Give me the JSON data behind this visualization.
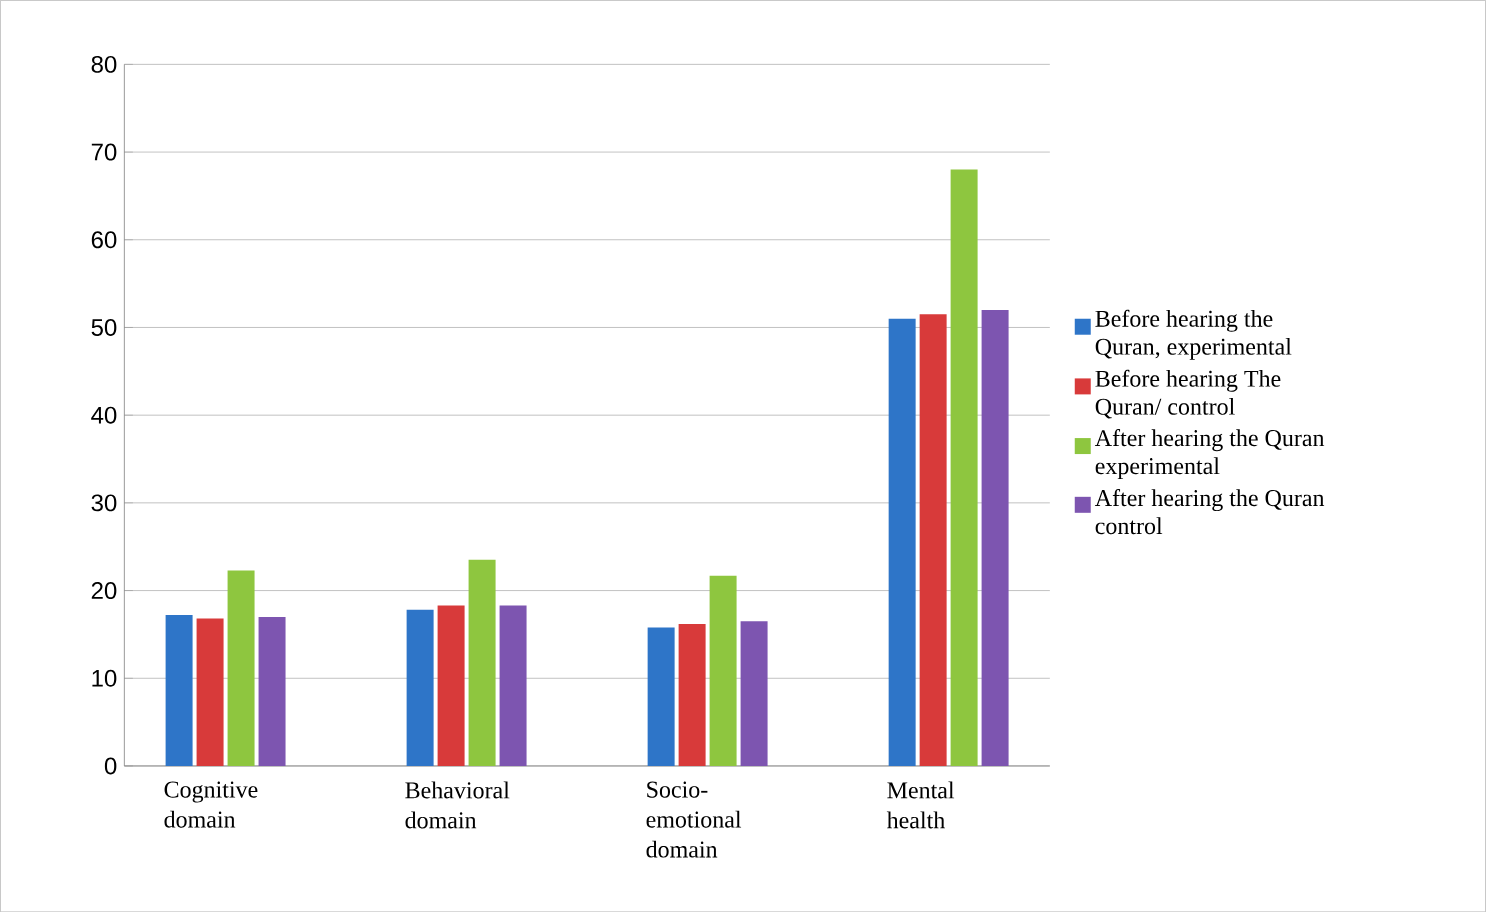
{
  "chart_data": {
    "type": "bar",
    "categories": [
      "Cognitive domain",
      "Behavioral domain",
      "Socio-emotional domain",
      "Mental health"
    ],
    "series": [
      {
        "name": "Before hearing the Quran, experimental",
        "color": "#2e75c8",
        "values": [
          17.2,
          17.8,
          15.8,
          51
        ]
      },
      {
        "name": "Before hearing The Quran/ control",
        "color": "#d83a3a",
        "values": [
          16.8,
          18.3,
          16.2,
          51.5
        ]
      },
      {
        "name": "After hearing the Quran experimental",
        "color": "#8ec63f",
        "values": [
          22.3,
          23.5,
          21.7,
          68
        ]
      },
      {
        "name": "After hearing the Quran control",
        "color": "#7d55b0",
        "values": [
          17,
          18.3,
          16.5,
          52
        ]
      }
    ],
    "ylim": [
      0,
      80
    ],
    "yticks": [
      0,
      10,
      20,
      30,
      40,
      50,
      60,
      70,
      80
    ],
    "grid": "y",
    "legend": "right"
  }
}
